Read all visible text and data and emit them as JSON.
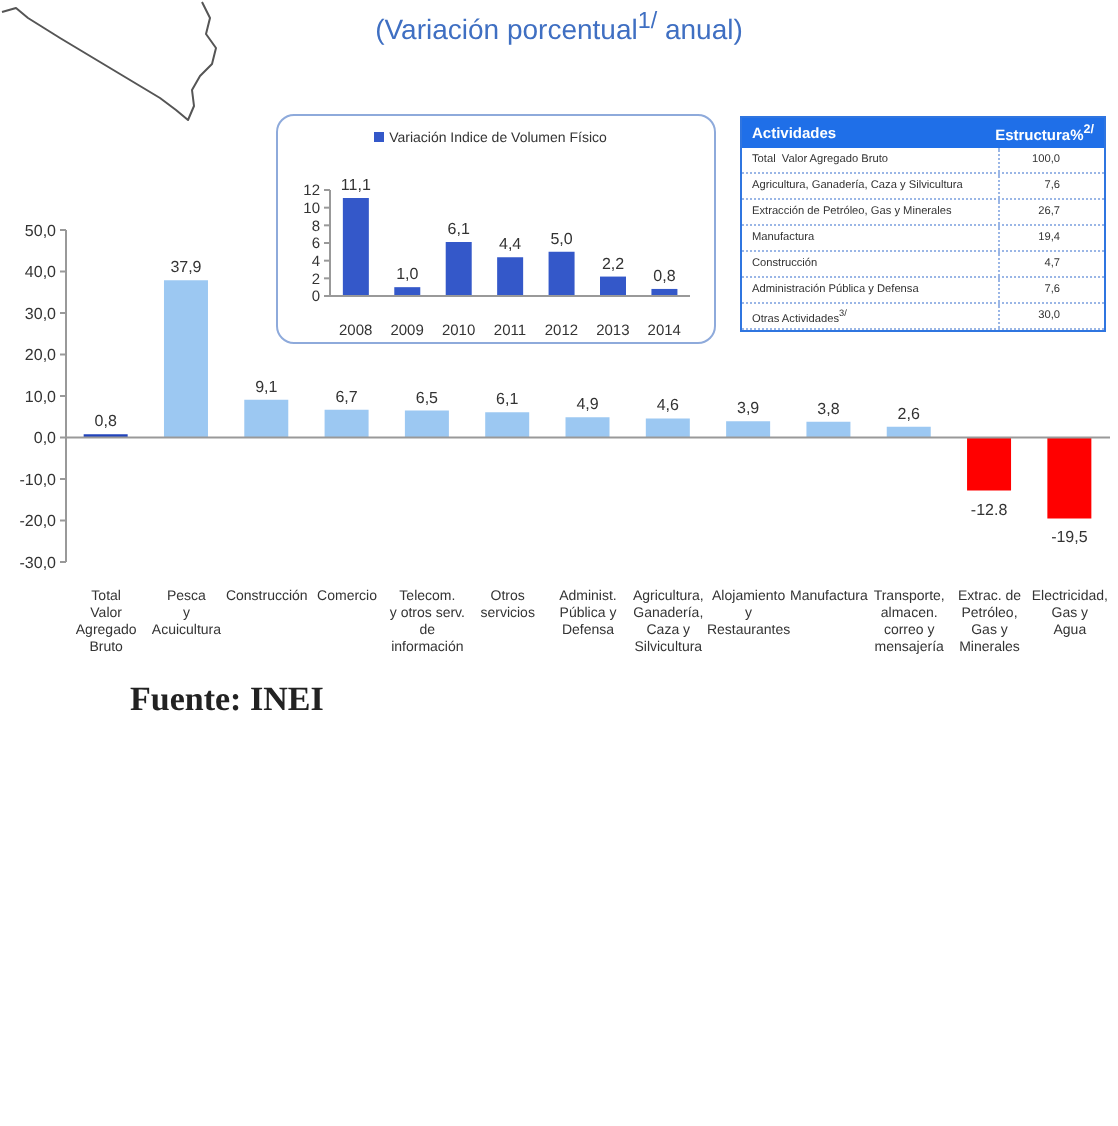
{
  "chart_data": [
    {
      "type": "bar",
      "title": "(Variación porcentual$^{1/}$ anual)",
      "categories": [
        "Total\nValor\nAgregado\nBruto",
        "Pesca\ny\nAcuicultura",
        "Construcción",
        "Comercio",
        "Telecom.\ny otros serv.\nde\ninformación",
        "Otros\nservicios",
        "Administ.\nPública y\nDefensa",
        "Agricultura,\nGanadería,\nCaza y\nSilvicultura",
        "Alojamiento\ny\nRestaurantes",
        "Manufactura",
        "Transporte,\nalmacen.\ncorreo y\nmensajería",
        "Extrac. de\nPetróleo,\nGas y\nMinerales",
        "Electricidad,\nGas y\nAgua"
      ],
      "values": [
        0.8,
        37.9,
        9.1,
        6.7,
        6.5,
        6.1,
        4.9,
        4.6,
        3.9,
        3.8,
        2.6,
        -12.8,
        -19.5
      ],
      "value_labels": [
        "0,8",
        "37,9",
        "9,1",
        "6,7",
        "6,5",
        "6,1",
        "4,9",
        "4,6",
        "3,9",
        "3,8",
        "2,6",
        "-12.8",
        "-19,5"
      ],
      "colors": [
        "#2244bb",
        "#9cc8f2",
        "#9cc8f2",
        "#9cc8f2",
        "#9cc8f2",
        "#9cc8f2",
        "#9cc8f2",
        "#9cc8f2",
        "#9cc8f2",
        "#9cc8f2",
        "#9cc8f2",
        "#ff0000",
        "#ff0000"
      ],
      "ylim": [
        -30,
        50
      ],
      "yticks": [
        {
          "value": -30,
          "label": "-30,0"
        },
        {
          "value": -20,
          "label": "-20,0"
        },
        {
          "value": -10,
          "label": "-10,0"
        },
        {
          "value": 0,
          "label": "0,0"
        },
        {
          "value": 10,
          "label": "10,0"
        },
        {
          "value": 20,
          "label": "20,0"
        },
        {
          "value": 30,
          "label": "30,0"
        },
        {
          "value": 40,
          "label": "40,0"
        },
        {
          "value": 50,
          "label": "50,0"
        }
      ],
      "annotations": [
        "Fuente: INEI"
      ]
    },
    {
      "type": "bar",
      "categories": [
        "2008",
        "2009",
        "2010",
        "2011",
        "2012",
        "2013",
        "2014"
      ],
      "series": [
        {
          "name": "Variación Indice de Volumen Físico",
          "color": "#3458c9",
          "values": [
            11.1,
            1.0,
            6.1,
            4.4,
            5.0,
            2.2,
            0.8
          ],
          "value_labels": [
            "11,1",
            "1,0",
            "6,1",
            "4,4",
            "5,0",
            "2,2",
            "0,8"
          ]
        }
      ],
      "ylim": [
        0,
        12
      ],
      "yticks": [
        0,
        2,
        4,
        6,
        8,
        10,
        12
      ],
      "legend": "top"
    },
    {
      "type": "other",
      "xlabel": "Actividades",
      "ylabel": "Estructura%$^{2/}$",
      "categories": [
        "Total  Valor Agregado Bruto",
        "Agricultura, Ganadería, Caza y Silvicultura",
        "Extracción de Petróleo, Gas y Minerales",
        "Manufactura",
        "Construcción",
        "Administración Pública y Defensa",
        "Otras Actividades$^{3/}$"
      ],
      "value_labels": [
        "100,0",
        "7,6",
        "26,7",
        "19,4",
        "4,7",
        "7,6",
        "30,0"
      ]
    }
  ]
}
